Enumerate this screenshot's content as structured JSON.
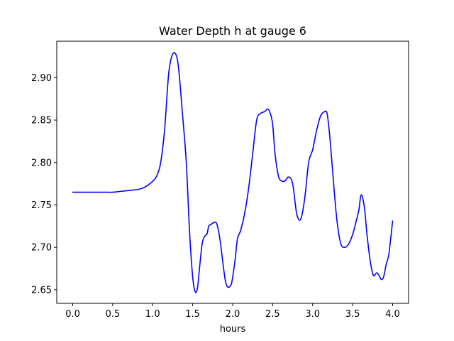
{
  "chart_data": {
    "type": "line",
    "title": "Water Depth h at gauge 6",
    "xlabel": "hours",
    "ylabel": "",
    "xlim": [
      -0.2,
      4.2
    ],
    "ylim": [
      2.634,
      2.943
    ],
    "xticks": [
      0.0,
      0.5,
      1.0,
      1.5,
      2.0,
      2.5,
      3.0,
      3.5,
      4.0
    ],
    "xtick_labels": [
      "0.0",
      "0.5",
      "1.0",
      "1.5",
      "2.0",
      "2.5",
      "3.0",
      "3.5",
      "4.0"
    ],
    "yticks": [
      2.65,
      2.7,
      2.75,
      2.8,
      2.85,
      2.9
    ],
    "ytick_labels": [
      "2.65",
      "2.70",
      "2.75",
      "2.80",
      "2.85",
      "2.90"
    ],
    "grid": false,
    "series": [
      {
        "color": "#0000ff",
        "x": [
          0.0,
          0.1,
          0.2,
          0.3,
          0.4,
          0.5,
          0.6,
          0.7,
          0.8,
          0.85,
          0.9,
          0.95,
          1.0,
          1.05,
          1.1,
          1.15,
          1.2,
          1.25,
          1.3,
          1.33,
          1.37,
          1.42,
          1.46,
          1.5,
          1.53,
          1.56,
          1.59,
          1.62,
          1.65,
          1.68,
          1.7,
          1.73,
          1.76,
          1.8,
          1.84,
          1.88,
          1.91,
          1.94,
          1.98,
          2.0,
          2.03,
          2.06,
          2.1,
          2.15,
          2.2,
          2.25,
          2.3,
          2.35,
          2.4,
          2.44,
          2.47,
          2.5,
          2.53,
          2.57,
          2.6,
          2.65,
          2.7,
          2.75,
          2.8,
          2.85,
          2.9,
          2.95,
          3.0,
          3.05,
          3.1,
          3.15,
          3.18,
          3.21,
          3.25,
          3.3,
          3.35,
          3.4,
          3.45,
          3.5,
          3.55,
          3.58,
          3.6,
          3.62,
          3.65,
          3.68,
          3.72,
          3.76,
          3.8,
          3.83,
          3.86,
          3.89,
          3.92,
          3.95,
          3.97,
          4.0
        ],
        "values": [
          2.765,
          2.765,
          2.765,
          2.765,
          2.765,
          2.765,
          2.766,
          2.767,
          2.768,
          2.769,
          2.771,
          2.774,
          2.778,
          2.784,
          2.8,
          2.84,
          2.905,
          2.928,
          2.925,
          2.905,
          2.86,
          2.8,
          2.72,
          2.665,
          2.648,
          2.652,
          2.68,
          2.705,
          2.713,
          2.716,
          2.725,
          2.727,
          2.729,
          2.728,
          2.71,
          2.68,
          2.66,
          2.653,
          2.656,
          2.665,
          2.685,
          2.71,
          2.72,
          2.74,
          2.77,
          2.81,
          2.85,
          2.858,
          2.86,
          2.863,
          2.858,
          2.845,
          2.81,
          2.785,
          2.779,
          2.778,
          2.783,
          2.775,
          2.74,
          2.733,
          2.757,
          2.8,
          2.815,
          2.838,
          2.855,
          2.86,
          2.858,
          2.835,
          2.79,
          2.735,
          2.705,
          2.7,
          2.704,
          2.715,
          2.733,
          2.745,
          2.76,
          2.76,
          2.745,
          2.715,
          2.684,
          2.667,
          2.67,
          2.667,
          2.662,
          2.666,
          2.68,
          2.69,
          2.705,
          2.731
        ]
      }
    ]
  }
}
